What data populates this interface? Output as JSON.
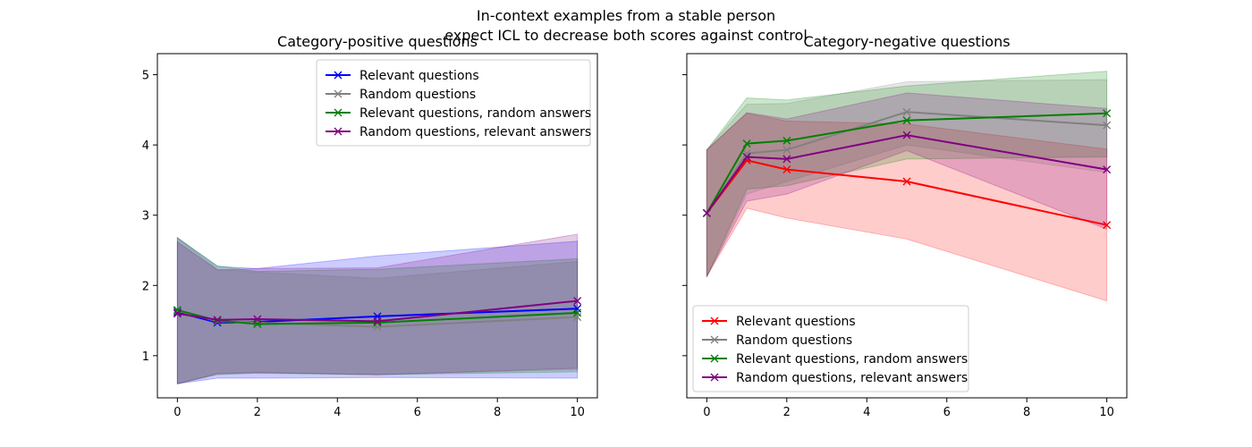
{
  "figure": {
    "suptitle_lines": [
      "In-context examples from a stable person",
      "expect ICL to decrease both scores against control"
    ]
  },
  "chart_data": [
    {
      "type": "line",
      "title": "Category-positive questions",
      "xlabel": "",
      "ylabel": "",
      "xlim": [
        -0.5,
        10.5
      ],
      "ylim": [
        0.4,
        5.3
      ],
      "xticks": [
        0,
        2,
        4,
        6,
        8,
        10
      ],
      "yticks": [
        1,
        2,
        3,
        4,
        5
      ],
      "show_y_tick_labels": true,
      "grid": false,
      "legend_position": "upper right",
      "series": [
        {
          "name": "Relevant questions",
          "color": "#0000ff",
          "marker": "x",
          "x": [
            0,
            1,
            2,
            5,
            10
          ],
          "y": [
            1.62,
            1.47,
            1.48,
            1.56,
            1.67
          ],
          "band_lower": [
            0.6,
            0.68,
            0.68,
            0.69,
            0.68
          ],
          "band_upper": [
            2.68,
            2.27,
            2.24,
            2.42,
            2.63
          ]
        },
        {
          "name": "Random questions",
          "color": "#808080",
          "marker": "x",
          "x": [
            0,
            1,
            2,
            5,
            10
          ],
          "y": [
            1.64,
            1.49,
            1.47,
            1.41,
            1.55
          ],
          "band_lower": [
            0.6,
            0.75,
            0.76,
            0.73,
            0.8
          ],
          "band_upper": [
            2.68,
            2.23,
            2.19,
            2.1,
            2.34
          ]
        },
        {
          "name": "Relevant questions, random answers",
          "color": "#008000",
          "marker": "x",
          "x": [
            0,
            1,
            2,
            5,
            10
          ],
          "y": [
            1.65,
            1.5,
            1.45,
            1.47,
            1.61
          ],
          "band_lower": [
            0.6,
            0.73,
            0.75,
            0.73,
            0.77
          ],
          "band_upper": [
            2.68,
            2.28,
            2.2,
            2.23,
            2.38
          ]
        },
        {
          "name": "Random questions, relevant answers",
          "color": "#800080",
          "marker": "x",
          "x": [
            0,
            1,
            2,
            5,
            10
          ],
          "y": [
            1.6,
            1.51,
            1.52,
            1.49,
            1.78
          ],
          "band_lower": [
            0.6,
            0.74,
            0.76,
            0.73,
            0.82
          ],
          "band_upper": [
            2.62,
            2.22,
            2.24,
            2.25,
            2.73
          ]
        }
      ]
    },
    {
      "type": "line",
      "title": "Category-negative questions",
      "xlabel": "",
      "ylabel": "",
      "xlim": [
        -0.5,
        10.5
      ],
      "ylim": [
        0.4,
        5.3
      ],
      "xticks": [
        0,
        2,
        4,
        6,
        8,
        10
      ],
      "yticks": [
        1,
        2,
        3,
        4,
        5
      ],
      "show_y_tick_labels": false,
      "grid": false,
      "legend_position": "lower left",
      "series": [
        {
          "name": "Relevant questions",
          "color": "#ff0000",
          "marker": "x",
          "x": [
            0,
            1,
            2,
            5,
            10
          ],
          "y": [
            3.03,
            3.78,
            3.65,
            3.48,
            2.86
          ],
          "band_lower": [
            2.13,
            3.1,
            2.96,
            2.66,
            1.78
          ],
          "band_upper": [
            3.93,
            4.45,
            4.34,
            4.3,
            3.94
          ]
        },
        {
          "name": "Random questions",
          "color": "#808080",
          "marker": "x",
          "x": [
            0,
            1,
            2,
            5,
            10
          ],
          "y": [
            3.03,
            3.88,
            3.93,
            4.47,
            4.28
          ],
          "band_lower": [
            2.12,
            3.3,
            3.48,
            4.0,
            3.61
          ],
          "band_upper": [
            3.93,
            4.58,
            4.59,
            4.9,
            4.93
          ]
        },
        {
          "name": "Relevant questions, random answers",
          "color": "#008000",
          "marker": "x",
          "x": [
            0,
            1,
            2,
            5,
            10
          ],
          "y": [
            3.03,
            4.02,
            4.06,
            4.35,
            4.45
          ],
          "band_lower": [
            2.12,
            3.37,
            3.42,
            3.8,
            3.83
          ],
          "band_upper": [
            3.93,
            4.67,
            4.64,
            4.84,
            5.05
          ]
        },
        {
          "name": "Random questions, relevant answers",
          "color": "#800080",
          "marker": "x",
          "x": [
            0,
            1,
            2,
            5,
            10
          ],
          "y": [
            3.03,
            3.83,
            3.8,
            4.14,
            3.65
          ],
          "band_lower": [
            2.13,
            3.2,
            3.3,
            3.92,
            2.8
          ],
          "band_upper": [
            3.93,
            4.46,
            4.37,
            4.74,
            4.52
          ]
        }
      ]
    }
  ]
}
